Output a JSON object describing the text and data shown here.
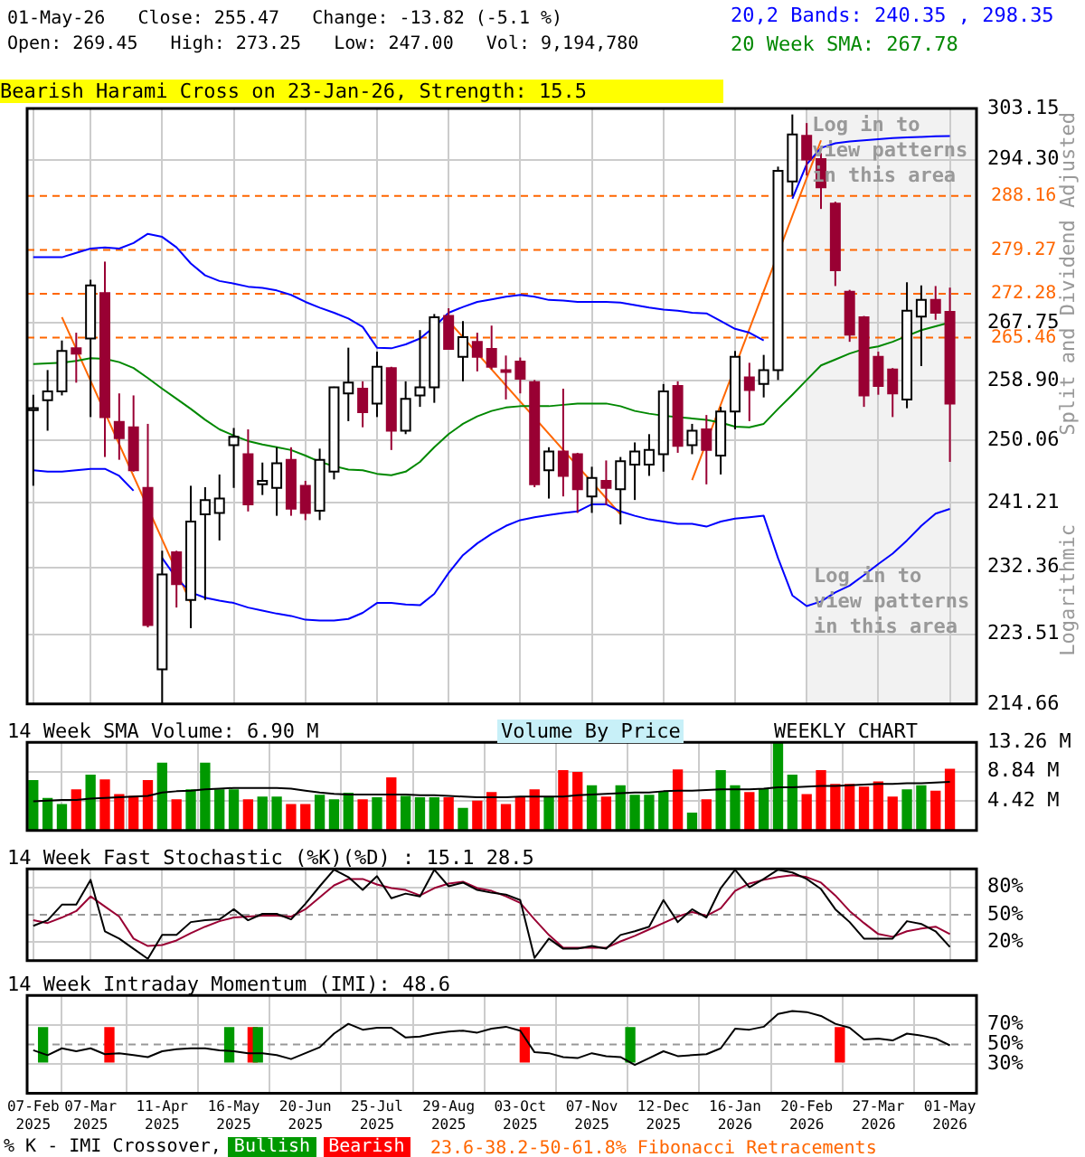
{
  "chart_data": [
    {
      "type": "candlestick",
      "title": "Bearish Harami Cross on 23-Jan-26, Strength: 15.5",
      "subtitle": "01-May-26   Close: 255.47   Change: -13.82 (-5.1 %)",
      "ylabel": "Split and Dividend Adjusted",
      "annotations": [
        "Open: 269.45   High: 273.25   Low: 247.00   Vol: 9,194,780",
        "Logarithmic",
        "Log in to view patterns in this area",
        "23.6-38.2-50-61.8% Fibonacci Retracements"
      ],
      "x": [
        "2025-02-07",
        "2025-02-14",
        "2025-02-21",
        "2025-02-28",
        "2025-03-07",
        "2025-03-14",
        "2025-03-21",
        "2025-03-28",
        "2025-04-04",
        "2025-04-11",
        "2025-04-18",
        "2025-04-25",
        "2025-05-02",
        "2025-05-09",
        "2025-05-16",
        "2025-05-23",
        "2025-05-30",
        "2025-06-06",
        "2025-06-13",
        "2025-06-20",
        "2025-06-27",
        "2025-07-04",
        "2025-07-11",
        "2025-07-18",
        "2025-07-25",
        "2025-08-01",
        "2025-08-08",
        "2025-08-15",
        "2025-08-22",
        "2025-08-29",
        "2025-09-05",
        "2025-09-12",
        "2025-09-19",
        "2025-09-26",
        "2025-10-03",
        "2025-10-10",
        "2025-10-17",
        "2025-10-24",
        "2025-10-31",
        "2025-11-07",
        "2025-11-14",
        "2025-11-21",
        "2025-11-28",
        "2025-12-05",
        "2025-12-12",
        "2025-12-19",
        "2025-12-26",
        "2026-01-02",
        "2026-01-09",
        "2026-01-16",
        "2026-01-23",
        "2026-01-30",
        "2026-02-06",
        "2026-02-13",
        "2026-02-20",
        "2026-02-27",
        "2026-03-06",
        "2026-03-13",
        "2026-03-20",
        "2026-03-27",
        "2026-04-03",
        "2026-04-10",
        "2026-04-17",
        "2026-04-24",
        "2026-05-01"
      ],
      "ohlc": [
        [
          254.5,
          256.8,
          243.6,
          254.8
        ],
        [
          256.0,
          260.5,
          251.5,
          257.3
        ],
        [
          257.3,
          265.0,
          256.7,
          263.4
        ],
        [
          263.8,
          266.2,
          258.6,
          263.0
        ],
        [
          265.3,
          274.5,
          253.5,
          273.6
        ],
        [
          272.4,
          277.4,
          247.7,
          253.5
        ],
        [
          252.8,
          257.0,
          247.3,
          250.4
        ],
        [
          252.0,
          256.7,
          245.6,
          245.8
        ],
        [
          243.3,
          252.5,
          224.4,
          224.7
        ],
        [
          219.0,
          234.6,
          214.7,
          231.4
        ],
        [
          234.4,
          234.6,
          227.0,
          230.1
        ],
        [
          228.0,
          243.6,
          224.3,
          238.6
        ],
        [
          239.6,
          243.4,
          228.0,
          241.6
        ],
        [
          239.8,
          245.2,
          236.0,
          241.8
        ],
        [
          249.4,
          251.9,
          243.3,
          250.6
        ],
        [
          248.1,
          251.7,
          240.0,
          241.0
        ],
        [
          243.8,
          246.9,
          242.3,
          244.3
        ],
        [
          243.3,
          249.1,
          239.4,
          246.8
        ],
        [
          247.3,
          249.1,
          239.4,
          240.4
        ],
        [
          243.6,
          244.3,
          238.8,
          239.8
        ],
        [
          240.1,
          248.9,
          238.8,
          247.3
        ],
        [
          245.6,
          258.0,
          244.5,
          257.9
        ],
        [
          257.0,
          263.9,
          252.9,
          258.6
        ],
        [
          257.7,
          258.8,
          252.0,
          254.2
        ],
        [
          255.5,
          263.3,
          253.5,
          261.0
        ],
        [
          260.8,
          261.0,
          248.7,
          251.5
        ],
        [
          251.5,
          258.8,
          251.0,
          256.2
        ],
        [
          256.7,
          266.6,
          255.0,
          257.9
        ],
        [
          257.9,
          269.1,
          255.6,
          268.6
        ],
        [
          268.8,
          270.0,
          263.7,
          263.7
        ],
        [
          262.5,
          268.0,
          258.8,
          265.5
        ],
        [
          264.8,
          266.2,
          260.3,
          262.5
        ],
        [
          263.7,
          267.3,
          260.6,
          261.0
        ],
        [
          260.5,
          262.7,
          256.1,
          260.2
        ],
        [
          261.8,
          262.4,
          257.0,
          259.2
        ],
        [
          258.7,
          259.0,
          243.4,
          243.8
        ],
        [
          245.8,
          249.1,
          241.8,
          248.5
        ],
        [
          248.5,
          257.7,
          242.1,
          245.0
        ],
        [
          248.1,
          248.3,
          239.8,
          243.1
        ],
        [
          242.1,
          246.3,
          239.8,
          244.7
        ],
        [
          244.3,
          247.2,
          240.9,
          243.3
        ],
        [
          243.1,
          247.7,
          238.2,
          247.1
        ],
        [
          246.6,
          249.8,
          241.6,
          248.5
        ],
        [
          246.6,
          251.0,
          245.0,
          248.7
        ],
        [
          248.1,
          258.4,
          245.6,
          257.3
        ],
        [
          258.1,
          258.8,
          248.3,
          249.3
        ],
        [
          249.4,
          252.5,
          248.1,
          251.5
        ],
        [
          251.7,
          253.8,
          243.8,
          248.7
        ],
        [
          247.9,
          255.0,
          245.2,
          254.3
        ],
        [
          254.3,
          263.4,
          251.7,
          262.5
        ],
        [
          259.4,
          261.6,
          252.9,
          257.5
        ],
        [
          258.4,
          262.8,
          256.4,
          260.5
        ],
        [
          260.5,
          293.1,
          259.0,
          292.4
        ],
        [
          290.6,
          302.1,
          288.2,
          298.6
        ],
        [
          298.4,
          300.6,
          291.6,
          294.3
        ],
        [
          294.4,
          295.4,
          286.0,
          289.6
        ],
        [
          286.9,
          287.2,
          273.5,
          276.0
        ],
        [
          272.6,
          272.9,
          264.8,
          265.9
        ],
        [
          268.6,
          268.8,
          255.0,
          256.7
        ],
        [
          262.5,
          263.3,
          256.8,
          258.1
        ],
        [
          260.6,
          260.8,
          253.5,
          257.0
        ],
        [
          256.1,
          274.1,
          254.8,
          269.6
        ],
        [
          268.7,
          273.6,
          261.1,
          271.3
        ],
        [
          271.3,
          273.5,
          268.2,
          269.3
        ],
        [
          269.45,
          273.25,
          247.0,
          255.47
        ]
      ],
      "colors": [
        "#ffffff",
        "#ffffff",
        "#ffffff",
        "#990033",
        "#ffffff",
        "#990033",
        "#990033",
        "#990033",
        "#990033",
        "#ffffff",
        "#990033",
        "#ffffff",
        "#ffffff",
        "#ffffff",
        "#ffffff",
        "#990033",
        "#ffffff",
        "#ffffff",
        "#990033",
        "#990033",
        "#ffffff",
        "#ffffff",
        "#ffffff",
        "#990033",
        "#ffffff",
        "#990033",
        "#ffffff",
        "#ffffff",
        "#ffffff",
        "#990033",
        "#ffffff",
        "#990033",
        "#990033",
        "#990033",
        "#990033",
        "#990033",
        "#ffffff",
        "#990033",
        "#990033",
        "#ffffff",
        "#990033",
        "#ffffff",
        "#ffffff",
        "#ffffff",
        "#ffffff",
        "#990033",
        "#ffffff",
        "#990033",
        "#ffffff",
        "#ffffff",
        "#990033",
        "#ffffff",
        "#ffffff",
        "#ffffff",
        "#990033",
        "#990033",
        "#990033",
        "#990033",
        "#990033",
        "#990033",
        "#990033",
        "#ffffff",
        "#ffffff",
        "#990033",
        "#990033"
      ],
      "series": [
        {
          "type": "line",
          "name": "20,2 Bands: 240.35 , 298.35",
          "color": "#0000ff",
          "values": [
            278.1,
            278.1,
            278.1,
            278.8,
            279.5,
            279.7,
            279.5,
            280.4,
            281.9,
            281.4,
            279.7,
            277.1,
            275.2,
            274.3,
            273.9,
            273.4,
            273.2,
            272.8,
            272.1,
            271.0,
            270.1,
            269.3,
            268.4,
            267.1,
            263.9,
            263.8,
            264.4,
            265.3,
            267.1,
            269.3,
            270.2,
            271.0,
            271.4,
            271.8,
            272.1,
            271.8,
            271.3,
            271.2,
            271.0,
            271.0,
            271.0,
            270.9,
            270.5,
            270.1,
            269.8,
            269.6,
            269.3,
            269.2,
            268.0,
            266.8,
            266.2,
            265.0,
            null,
            287.7,
            293.5,
            296.3,
            297.1,
            297.4,
            297.6,
            297.8,
            298.0,
            298.1,
            298.2,
            298.3,
            298.35
          ]
        },
        {
          "type": "line",
          "color": "#0000ff",
          "values": [
            245.8,
            245.6,
            245.6,
            245.8,
            246.0,
            246.0,
            245.0,
            242.9,
            null,
            233.6,
            230.9,
            229.0,
            228.3,
            227.9,
            227.6,
            227.0,
            226.6,
            226.2,
            225.9,
            225.4,
            225.3,
            225.3,
            225.5,
            226.3,
            227.6,
            227.6,
            227.4,
            227.3,
            228.8,
            231.6,
            234.0,
            235.6,
            236.9,
            238.0,
            238.8,
            239.2,
            239.5,
            239.8,
            240.0,
            241.0,
            241.0,
            240.0,
            239.4,
            238.9,
            238.6,
            238.3,
            238.3,
            237.9,
            238.6,
            239.0,
            239.2,
            239.4,
            233.6,
            228.6,
            227.2,
            227.8,
            229.0,
            229.9,
            231.3,
            232.8,
            234.2,
            236.0,
            238.0,
            239.7,
            240.35
          ]
        },
        {
          "type": "line",
          "name": "20 Week SMA: 267.78",
          "color": "#008800",
          "values": [
            261.4,
            261.5,
            261.6,
            261.9,
            262.3,
            262.2,
            261.7,
            260.8,
            259.3,
            257.7,
            256.2,
            254.7,
            253.1,
            251.7,
            250.8,
            250.0,
            249.5,
            249.1,
            248.7,
            247.9,
            247.0,
            246.4,
            245.9,
            245.8,
            245.3,
            245.1,
            245.6,
            247.0,
            249.1,
            251.0,
            252.5,
            253.6,
            254.4,
            254.9,
            255.1,
            255.1,
            255.1,
            255.3,
            255.5,
            255.5,
            255.5,
            255.1,
            254.4,
            254.0,
            253.7,
            253.5,
            253.3,
            253.1,
            252.7,
            252.1,
            252.0,
            252.5,
            254.7,
            256.8,
            259.0,
            261.2,
            262.1,
            263.0,
            263.7,
            264.1,
            264.8,
            265.7,
            266.6,
            267.2,
            267.78
          ]
        },
        {
          "type": "line",
          "color": "#ff6600",
          "x": [
            "2025-02-21",
            "2025-04-25"
          ],
          "values": [
            268.6,
            227.6
          ]
        },
        {
          "type": "line",
          "color": "#ff6600",
          "x": [
            "2025-08-29",
            "2025-11-21"
          ],
          "values": [
            268.0,
            239.6
          ]
        },
        {
          "type": "line",
          "color": "#ff6600",
          "x": [
            "2025-12-26",
            "2026-02-27"
          ],
          "values": [
            244.4,
            297.6
          ]
        }
      ],
      "xlim": [
        "2025-02-04",
        "2026-05-14"
      ],
      "ylim": [
        214.66,
        303.15
      ],
      "xticks": [
        {
          "value": "2025-02-07",
          "label": null
        },
        {
          "value": "2025-03-07",
          "label": null
        },
        {
          "value": "2025-04-11",
          "label": null
        },
        {
          "value": "2025-05-16",
          "label": null
        },
        {
          "value": "2025-06-20",
          "label": null
        },
        {
          "value": "2025-07-25",
          "label": null
        },
        {
          "value": "2025-08-29",
          "label": null
        },
        {
          "value": "2025-10-03",
          "label": null
        },
        {
          "value": "2025-11-07",
          "label": null
        },
        {
          "value": "2025-12-12",
          "label": null
        },
        {
          "value": "2026-01-16",
          "label": null
        },
        {
          "value": "2026-02-20",
          "label": null
        },
        {
          "value": "2026-03-27",
          "label": null
        },
        {
          "value": "2026-05-01",
          "label": null
        }
      ],
      "yticks": [
        {
          "value": 214.66,
          "label": "214.66"
        },
        {
          "value": 223.51,
          "label": "223.51"
        },
        {
          "value": 232.36,
          "label": "232.36"
        },
        {
          "value": 241.21,
          "label": "241.21"
        },
        {
          "value": 250.06,
          "label": "250.06"
        },
        {
          "value": 258.9,
          "label": "258.90"
        },
        {
          "value": 267.75,
          "label": "267.75"
        },
        {
          "value": 294.3,
          "label": "294.30"
        },
        {
          "value": 303.15,
          "label": "303.15"
        }
      ],
      "log": true,
      "grid": true,
      "legend": "top right",
      "tick_labels": "y",
      "marker": "none",
      "ref_lines": [
        {
          "axis": "y",
          "value": 288.16,
          "label": "288.16",
          "color": "#ff6600",
          "line_style": "dashed"
        },
        {
          "axis": "y",
          "value": 279.27,
          "label": "279.27",
          "color": "#ff6600",
          "line_style": "dashed"
        },
        {
          "axis": "y",
          "value": 272.28,
          "label": "272.28",
          "color": "#ff6600",
          "line_style": "dashed"
        },
        {
          "axis": "y",
          "value": 265.46,
          "label": "265.46",
          "color": "#ff6600",
          "line_style": "dashed"
        }
      ],
      "bands": [
        {
          "axis": "x",
          "from": "2026-02-20",
          "to": "2026-05-14",
          "label": "Log in to view patterns in this area",
          "color": "#f2f2f2"
        }
      ]
    },
    {
      "type": "bar",
      "title": "14 Week SMA Volume: 6.90 M",
      "annotations": [
        "Volume By Price",
        "WEEKLY CHART"
      ],
      "x": [
        "2025-02-07",
        "2025-02-14",
        "2025-02-21",
        "2025-02-28",
        "2025-03-07",
        "2025-03-14",
        "2025-03-21",
        "2025-03-28",
        "2025-04-04",
        "2025-04-11",
        "2025-04-18",
        "2025-04-25",
        "2025-05-02",
        "2025-05-09",
        "2025-05-16",
        "2025-05-23",
        "2025-05-30",
        "2025-06-06",
        "2025-06-13",
        "2025-06-20",
        "2025-06-27",
        "2025-07-04",
        "2025-07-11",
        "2025-07-18",
        "2025-07-25",
        "2025-08-01",
        "2025-08-08",
        "2025-08-15",
        "2025-08-22",
        "2025-08-29",
        "2025-09-05",
        "2025-09-12",
        "2025-09-19",
        "2025-09-26",
        "2025-10-03",
        "2025-10-10",
        "2025-10-17",
        "2025-10-24",
        "2025-10-31",
        "2025-11-07",
        "2025-11-14",
        "2025-11-21",
        "2025-11-28",
        "2025-12-05",
        "2025-12-12",
        "2025-12-19",
        "2025-12-26",
        "2026-01-02",
        "2026-01-09",
        "2026-01-16",
        "2026-01-23",
        "2026-01-30",
        "2026-02-06",
        "2026-02-13",
        "2026-02-20",
        "2026-02-27",
        "2026-03-06",
        "2026-03-13",
        "2026-03-20",
        "2026-03-27",
        "2026-04-03",
        "2026-04-10",
        "2026-04-17",
        "2026-04-24",
        "2026-05-01"
      ],
      "series": [
        {
          "type": "bar",
          "colors": [
            "#009900",
            "#009900",
            "#009900",
            "#ff0000",
            "#009900",
            "#ff0000",
            "#ff0000",
            "#ff0000",
            "#ff0000",
            "#009900",
            "#ff0000",
            "#009900",
            "#009900",
            "#009900",
            "#009900",
            "#ff0000",
            "#009900",
            "#009900",
            "#ff0000",
            "#ff0000",
            "#009900",
            "#009900",
            "#009900",
            "#ff0000",
            "#009900",
            "#ff0000",
            "#009900",
            "#009900",
            "#009900",
            "#ff0000",
            "#009900",
            "#ff0000",
            "#ff0000",
            "#ff0000",
            "#ff0000",
            "#ff0000",
            "#009900",
            "#ff0000",
            "#ff0000",
            "#009900",
            "#ff0000",
            "#009900",
            "#009900",
            "#009900",
            "#009900",
            "#ff0000",
            "#009900",
            "#ff0000",
            "#009900",
            "#009900",
            "#ff0000",
            "#009900",
            "#009900",
            "#009900",
            "#ff0000",
            "#ff0000",
            "#ff0000",
            "#ff0000",
            "#ff0000",
            "#ff0000",
            "#ff0000",
            "#009900",
            "#009900",
            "#ff0000",
            "#ff0000"
          ],
          "values": [
            7.5,
            4.8,
            3.9,
            6.1,
            8.3,
            7.6,
            5.4,
            5.1,
            7.5,
            10.1,
            4.6,
            6.1,
            10.1,
            6.1,
            6.1,
            4.6,
            5.0,
            5.0,
            3.9,
            3.9,
            5.3,
            4.6,
            5.6,
            4.6,
            4.9,
            7.9,
            5.1,
            4.9,
            4.9,
            4.9,
            3.3,
            4.4,
            5.7,
            3.9,
            4.9,
            6.1,
            4.9,
            9.0,
            8.7,
            6.7,
            5.0,
            6.7,
            5.3,
            5.3,
            5.8,
            9.1,
            2.6,
            4.6,
            9.0,
            6.7,
            5.7,
            6.2,
            13.2,
            8.3,
            5.4,
            9.0,
            6.9,
            6.9,
            6.5,
            7.3,
            5.0,
            6.1,
            6.7,
            5.9,
            9.2
          ]
        },
        {
          "type": "line",
          "color": "#000000",
          "values": [
            4.4,
            4.5,
            4.6,
            4.6,
            4.8,
            4.9,
            5.0,
            5.1,
            5.2,
            5.7,
            5.9,
            6.0,
            6.2,
            6.3,
            6.4,
            6.4,
            6.4,
            6.4,
            6.3,
            6.0,
            5.7,
            5.5,
            5.4,
            5.4,
            5.4,
            5.4,
            5.4,
            5.3,
            5.3,
            5.2,
            5.1,
            5.0,
            5.0,
            5.0,
            5.1,
            5.1,
            5.1,
            5.1,
            5.3,
            5.4,
            5.5,
            5.6,
            5.7,
            5.7,
            5.9,
            6.0,
            6.0,
            6.1,
            6.2,
            6.2,
            6.2,
            6.3,
            6.5,
            6.5,
            6.6,
            6.7,
            6.7,
            6.8,
            6.9,
            7.0,
            7.0,
            7.1,
            7.1,
            7.2,
            7.3
          ]
        }
      ],
      "xlim": [
        "2025-02-04",
        "2026-05-14"
      ],
      "ylim": [
        0,
        13.26
      ],
      "xticks": [
        {
          "value": "2025-02-07",
          "label": null
        },
        {
          "value": "2025-03-07",
          "label": null
        },
        {
          "value": "2025-04-11",
          "label": null
        },
        {
          "value": "2025-05-16",
          "label": null
        },
        {
          "value": "2025-06-20",
          "label": null
        },
        {
          "value": "2025-07-25",
          "label": null
        },
        {
          "value": "2025-08-29",
          "label": null
        },
        {
          "value": "2025-10-03",
          "label": null
        },
        {
          "value": "2025-11-07",
          "label": null
        },
        {
          "value": "2025-12-12",
          "label": null
        },
        {
          "value": "2026-01-16",
          "label": null
        },
        {
          "value": "2026-02-20",
          "label": null
        },
        {
          "value": "2026-03-27",
          "label": null
        },
        {
          "value": "2026-05-01",
          "label": null
        }
      ],
      "yticks": [
        {
          "value": 4.42,
          "label": "4.42 M"
        },
        {
          "value": 8.84,
          "label": "8.84 M"
        },
        {
          "value": 13.26,
          "label": "13.26 M"
        }
      ],
      "grid": true,
      "tick_labels": "y",
      "marker": "none"
    },
    {
      "type": "line",
      "title": "14 Week Fast Stochastic (%K)(%D) : 15.1 28.5",
      "x": [
        "2025-02-07",
        "2025-02-14",
        "2025-02-21",
        "2025-02-28",
        "2025-03-07",
        "2025-03-14",
        "2025-03-21",
        "2025-03-28",
        "2025-04-04",
        "2025-04-11",
        "2025-04-18",
        "2025-04-25",
        "2025-05-02",
        "2025-05-09",
        "2025-05-16",
        "2025-05-23",
        "2025-05-30",
        "2025-06-06",
        "2025-06-13",
        "2025-06-20",
        "2025-06-27",
        "2025-07-04",
        "2025-07-11",
        "2025-07-18",
        "2025-07-25",
        "2025-08-01",
        "2025-08-08",
        "2025-08-15",
        "2025-08-22",
        "2025-08-29",
        "2025-09-05",
        "2025-09-12",
        "2025-09-19",
        "2025-09-26",
        "2025-10-03",
        "2025-10-10",
        "2025-10-17",
        "2025-10-24",
        "2025-10-31",
        "2025-11-07",
        "2025-11-14",
        "2025-11-21",
        "2025-11-28",
        "2025-12-05",
        "2025-12-12",
        "2025-12-19",
        "2025-12-26",
        "2026-01-02",
        "2026-01-09",
        "2026-01-16",
        "2026-01-23",
        "2026-01-30",
        "2026-02-06",
        "2026-02-13",
        "2026-02-20",
        "2026-02-27",
        "2026-03-06",
        "2026-03-13",
        "2026-03-20",
        "2026-03-27",
        "2026-04-03",
        "2026-04-10",
        "2026-04-17",
        "2026-04-24",
        "2026-05-01"
      ],
      "series": [
        {
          "color": "#000000",
          "values": [
            38,
            44,
            61,
            61,
            88,
            32,
            24,
            13,
            2,
            28,
            28,
            42,
            44,
            45,
            56,
            44,
            51,
            51,
            45,
            62,
            81,
            99,
            91,
            77,
            92,
            68,
            73,
            70,
            99,
            81,
            85,
            77,
            74,
            72,
            66,
            3,
            24,
            13,
            13,
            16,
            13,
            28,
            32,
            37,
            66,
            42,
            56,
            47,
            79,
            99,
            80,
            89,
            99,
            96,
            89,
            78,
            56,
            42,
            24,
            24,
            24,
            43,
            40,
            32,
            15
          ]
        },
        {
          "color": "#990033",
          "values": [
            44,
            41,
            47,
            54,
            70,
            59,
            48,
            24,
            16,
            17,
            22,
            30,
            37,
            43,
            47,
            48,
            49,
            49,
            48,
            56,
            69,
            82,
            89,
            89,
            83,
            79,
            77,
            71,
            79,
            84,
            86,
            79,
            76,
            70,
            63,
            45,
            28,
            14,
            14,
            14,
            14,
            21,
            27,
            34,
            41,
            48,
            53,
            49,
            57,
            76,
            84,
            88,
            91,
            93,
            91,
            85,
            71,
            54,
            41,
            29,
            26,
            32,
            35,
            37,
            29
          ]
        }
      ],
      "xlim": [
        "2025-02-04",
        "2026-05-14"
      ],
      "ylim": [
        0,
        100
      ],
      "xticks": [
        {
          "value": "2025-02-07",
          "label": null
        },
        {
          "value": "2025-03-07",
          "label": null
        },
        {
          "value": "2025-04-11",
          "label": null
        },
        {
          "value": "2025-05-16",
          "label": null
        },
        {
          "value": "2025-06-20",
          "label": null
        },
        {
          "value": "2025-07-25",
          "label": null
        },
        {
          "value": "2025-08-29",
          "label": null
        },
        {
          "value": "2025-10-03",
          "label": null
        },
        {
          "value": "2025-11-07",
          "label": null
        },
        {
          "value": "2025-12-12",
          "label": null
        },
        {
          "value": "2026-01-16",
          "label": null
        },
        {
          "value": "2026-02-20",
          "label": null
        },
        {
          "value": "2026-03-27",
          "label": null
        },
        {
          "value": "2026-05-01",
          "label": null
        }
      ],
      "yticks": [
        {
          "value": 20,
          "label": "20%"
        },
        {
          "value": 50,
          "label": "50%"
        },
        {
          "value": 80,
          "label": "80%"
        }
      ],
      "grid": true,
      "tick_labels": "y",
      "marker": "none",
      "ref_lines": [
        {
          "axis": "y",
          "value": 50,
          "color": "#999999",
          "line_style": "dashed"
        }
      ]
    },
    {
      "type": "line",
      "title": "14 Week Intraday Momentum (IMI): 48.6",
      "legend_title": "% K - IMI Crossover,",
      "x": [
        "2025-02-07",
        "2025-02-14",
        "2025-02-21",
        "2025-02-28",
        "2025-03-07",
        "2025-03-14",
        "2025-03-21",
        "2025-03-28",
        "2025-04-04",
        "2025-04-11",
        "2025-04-18",
        "2025-04-25",
        "2025-05-02",
        "2025-05-09",
        "2025-05-16",
        "2025-05-23",
        "2025-05-30",
        "2025-06-06",
        "2025-06-13",
        "2025-06-20",
        "2025-06-27",
        "2025-07-04",
        "2025-07-11",
        "2025-07-18",
        "2025-07-25",
        "2025-08-01",
        "2025-08-08",
        "2025-08-15",
        "2025-08-22",
        "2025-08-29",
        "2025-09-05",
        "2025-09-12",
        "2025-09-19",
        "2025-09-26",
        "2025-10-03",
        "2025-10-10",
        "2025-10-17",
        "2025-10-24",
        "2025-10-31",
        "2025-11-07",
        "2025-11-14",
        "2025-11-21",
        "2025-11-28",
        "2025-12-05",
        "2025-12-12",
        "2025-12-19",
        "2025-12-26",
        "2026-01-02",
        "2026-01-09",
        "2026-01-16",
        "2026-01-23",
        "2026-01-30",
        "2026-02-06",
        "2026-02-13",
        "2026-02-20",
        "2026-02-27",
        "2026-03-06",
        "2026-03-13",
        "2026-03-20",
        "2026-03-27",
        "2026-04-03",
        "2026-04-10",
        "2026-04-17",
        "2026-04-24",
        "2026-05-01"
      ],
      "series": [
        {
          "type": "bar",
          "name": "Bullish",
          "color": "#009900",
          "x": [
            "2025-02-14",
            "2025-05-16",
            "2025-05-30",
            "2025-11-28"
          ],
          "base": [
            32,
            32,
            32,
            32
          ],
          "values": [
            35,
            35,
            35,
            35
          ]
        },
        {
          "type": "bar",
          "name": "Bearish",
          "color": "#ff0000",
          "x": [
            "2025-03-14",
            "2025-05-23",
            "2025-10-03",
            "2026-03-06"
          ],
          "base": [
            32,
            32,
            32,
            32
          ],
          "values": [
            35,
            35,
            35,
            35
          ]
        },
        {
          "type": "line",
          "color": "#000000",
          "values": [
            44,
            39,
            46,
            43,
            46,
            40,
            41,
            39,
            37,
            43,
            45,
            46,
            46,
            44,
            43,
            41,
            41,
            39,
            35,
            41,
            47,
            61,
            71,
            65,
            67,
            67,
            57,
            58,
            61,
            63,
            64,
            62,
            66,
            68,
            64,
            42,
            41,
            37,
            36,
            41,
            38,
            37,
            29,
            36,
            43,
            38,
            39,
            40,
            46,
            66,
            65,
            68,
            81,
            84,
            83,
            79,
            71,
            67,
            55,
            56,
            54,
            61,
            59,
            56,
            49
          ]
        }
      ],
      "xlim": [
        "2025-02-04",
        "2026-05-14"
      ],
      "ylim": [
        0,
        100
      ],
      "xticks": [
        {
          "value": "2025-02-07",
          "label": "07-Feb\n2025"
        },
        {
          "value": "2025-03-07",
          "label": "07-Mar\n2025"
        },
        {
          "value": "2025-04-11",
          "label": "11-Apr\n2025"
        },
        {
          "value": "2025-05-16",
          "label": "16-May\n2025"
        },
        {
          "value": "2025-06-20",
          "label": "20-Jun\n2025"
        },
        {
          "value": "2025-07-25",
          "label": "25-Jul\n2025"
        },
        {
          "value": "2025-08-29",
          "label": "29-Aug\n2025"
        },
        {
          "value": "2025-10-03",
          "label": "03-Oct\n2025"
        },
        {
          "value": "2025-11-07",
          "label": "07-Nov\n2025"
        },
        {
          "value": "2025-12-12",
          "label": "12-Dec\n2025"
        },
        {
          "value": "2026-01-16",
          "label": "16-Jan\n2026"
        },
        {
          "value": "2026-02-20",
          "label": "20-Feb\n2026"
        },
        {
          "value": "2026-03-27",
          "label": "27-Mar\n2026"
        },
        {
          "value": "2026-05-01",
          "label": "01-May\n2026"
        }
      ],
      "yticks": [
        {
          "value": 30,
          "label": "30%"
        },
        {
          "value": 50,
          "label": "50%"
        },
        {
          "value": 70,
          "label": "70%"
        }
      ],
      "grid": true,
      "legend": "bottom",
      "marker": "none",
      "ref_lines": [
        {
          "axis": "y",
          "value": 50,
          "color": "#999999",
          "line_style": "dashed"
        }
      ]
    }
  ]
}
